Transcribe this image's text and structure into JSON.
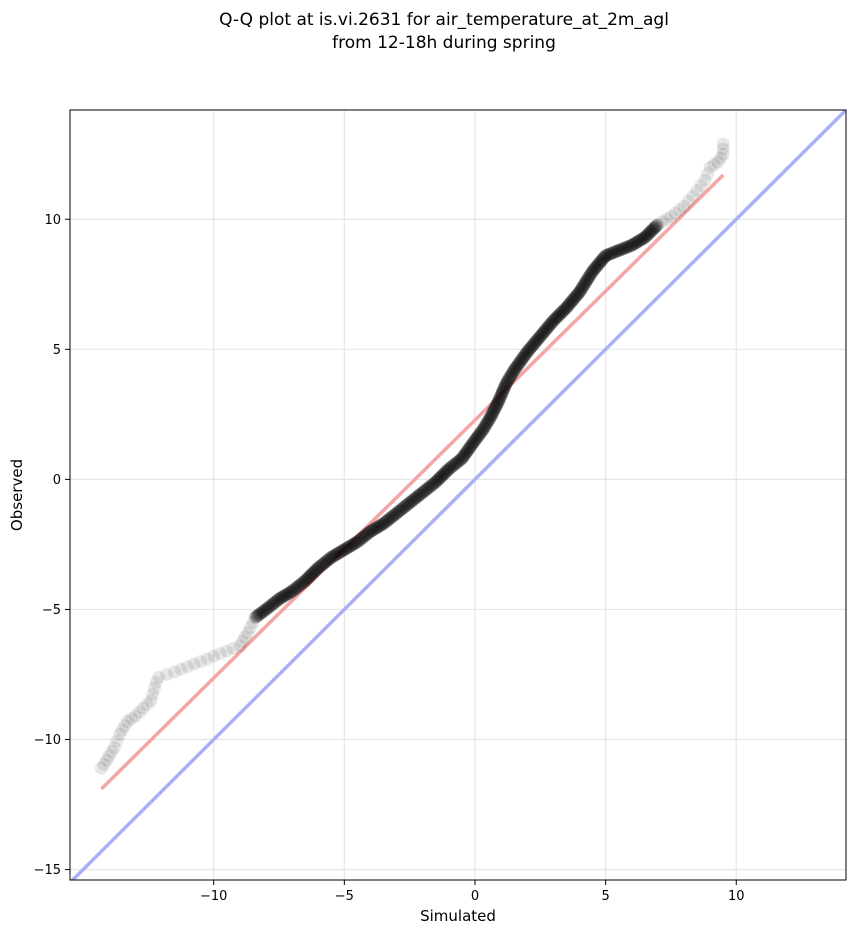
{
  "chart_data": {
    "type": "scatter",
    "title": [
      "Q-Q plot at is.vi.2631 for air_temperature_at_2m_agl",
      "from 12-18h during spring"
    ],
    "xlabel": "Simulated",
    "ylabel": "Observed",
    "xlim": [
      -15.5,
      14.2
    ],
    "ylim": [
      -15.4,
      14.2
    ],
    "xticks": [
      -10,
      -5,
      0,
      5,
      10
    ],
    "xtick_labels": [
      "−10",
      "−5",
      "0",
      "5",
      "10"
    ],
    "yticks": [
      -15,
      -10,
      -5,
      0,
      5,
      10
    ],
    "ytick_labels": [
      "−15",
      "−10",
      "−5",
      "0",
      "5",
      "10"
    ],
    "grid": true,
    "identity_line": {
      "color": "#aab0f5"
    },
    "fit_line": {
      "x": [
        -14.3,
        9.5
      ],
      "y": [
        -11.9,
        11.7
      ],
      "color": "#f4a6a6"
    },
    "quantiles": {
      "color": "#000000",
      "x": [
        -14.3,
        -14.1,
        -13.8,
        -13.6,
        -13.3,
        -13.0,
        -12.7,
        -12.4,
        -12.2,
        -12.1,
        -11.8,
        -11.5,
        -11.0,
        -10.5,
        -10.0,
        -9.5,
        -9.0,
        -8.7,
        -8.4,
        -8.0,
        -7.5,
        -7.0,
        -6.5,
        -6.0,
        -5.5,
        -5.0,
        -4.5,
        -4.0,
        -3.5,
        -3.0,
        -2.5,
        -2.0,
        -1.5,
        -1.0,
        -0.5,
        0.0,
        0.3,
        0.6,
        0.9,
        1.2,
        1.5,
        2.0,
        2.5,
        3.0,
        3.5,
        4.0,
        4.5,
        5.0,
        5.5,
        6.0,
        6.5,
        7.0,
        7.5,
        8.0,
        8.5,
        8.8,
        9.0,
        9.3,
        9.5,
        9.5
      ],
      "y": [
        -11.1,
        -10.8,
        -10.3,
        -9.8,
        -9.3,
        -9.1,
        -8.8,
        -8.5,
        -7.8,
        -7.6,
        -7.5,
        -7.4,
        -7.2,
        -7.0,
        -6.8,
        -6.6,
        -6.4,
        -5.9,
        -5.3,
        -5.0,
        -4.6,
        -4.3,
        -3.9,
        -3.4,
        -3.0,
        -2.7,
        -2.4,
        -2.0,
        -1.7,
        -1.3,
        -0.9,
        -0.5,
        -0.1,
        0.4,
        0.8,
        1.5,
        1.9,
        2.4,
        3.0,
        3.7,
        4.2,
        4.9,
        5.5,
        6.1,
        6.6,
        7.2,
        8.0,
        8.6,
        8.8,
        9.0,
        9.3,
        9.8,
        10.1,
        10.5,
        11.1,
        11.5,
        12.0,
        12.2,
        12.5,
        12.9
      ]
    }
  }
}
